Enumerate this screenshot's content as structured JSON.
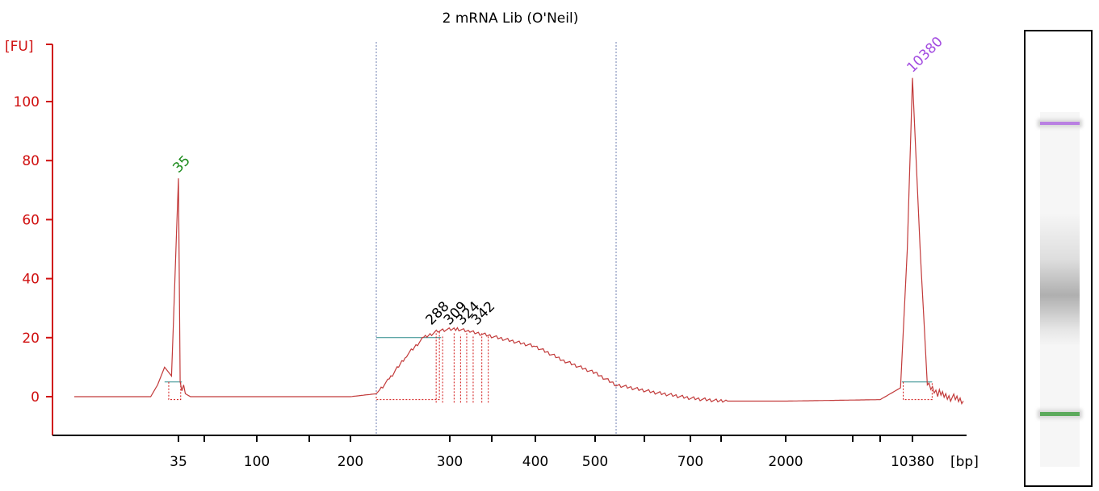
{
  "chart_data": {
    "type": "line",
    "title": "2 mRNA Lib (O'Neil)",
    "ylabel": "[FU]",
    "xlabel": "[bp]",
    "ylim": [
      -12,
      120
    ],
    "yticks": [
      0,
      20,
      40,
      60,
      80,
      100
    ],
    "xticks": [
      "35",
      "100",
      "200",
      "300",
      "400",
      "500",
      "700",
      "2000",
      "10380"
    ],
    "markers": [
      {
        "size_bp": 35,
        "label": "35",
        "peak_fu": 74,
        "color": "#1a8a1a"
      },
      {
        "size_bp": 10380,
        "label": "10380",
        "peak_fu": 108,
        "color": "#a24be0"
      }
    ],
    "peak_labels": [
      "288",
      "309",
      "324",
      "342"
    ],
    "region_bounds_bp": [
      215,
      560
    ],
    "trace": [
      {
        "bp": 20,
        "fu": 0
      },
      {
        "bp": 31,
        "fu": 0
      },
      {
        "bp": 32,
        "fu": 4
      },
      {
        "bp": 33,
        "fu": 10
      },
      {
        "bp": 34,
        "fu": 7
      },
      {
        "bp": 35,
        "fu": 74
      },
      {
        "bp": 36,
        "fu": 5
      },
      {
        "bp": 37,
        "fu": 2
      },
      {
        "bp": 38,
        "fu": 4
      },
      {
        "bp": 39,
        "fu": 1
      },
      {
        "bp": 42,
        "fu": 0
      },
      {
        "bp": 200,
        "fu": 0
      },
      {
        "bp": 215,
        "fu": 1
      },
      {
        "bp": 230,
        "fu": 6
      },
      {
        "bp": 250,
        "fu": 14
      },
      {
        "bp": 270,
        "fu": 20
      },
      {
        "bp": 288,
        "fu": 22.5
      },
      {
        "bp": 309,
        "fu": 23
      },
      {
        "bp": 324,
        "fu": 22
      },
      {
        "bp": 342,
        "fu": 21
      },
      {
        "bp": 400,
        "fu": 17
      },
      {
        "bp": 450,
        "fu": 12
      },
      {
        "bp": 500,
        "fu": 8
      },
      {
        "bp": 560,
        "fu": 4
      },
      {
        "bp": 620,
        "fu": 1.5
      },
      {
        "bp": 700,
        "fu": -0.5
      },
      {
        "bp": 1000,
        "fu": -1.5
      },
      {
        "bp": 2000,
        "fu": -1.5
      },
      {
        "bp": 8000,
        "fu": -1
      },
      {
        "bp": 9500,
        "fu": 3
      },
      {
        "bp": 10000,
        "fu": 50
      },
      {
        "bp": 10380,
        "fu": 108
      },
      {
        "bp": 10700,
        "fu": 50
      },
      {
        "bp": 11000,
        "fu": 4
      },
      {
        "bp": 11500,
        "fu": 1
      },
      {
        "bp": 12500,
        "fu": -1.5
      }
    ]
  }
}
